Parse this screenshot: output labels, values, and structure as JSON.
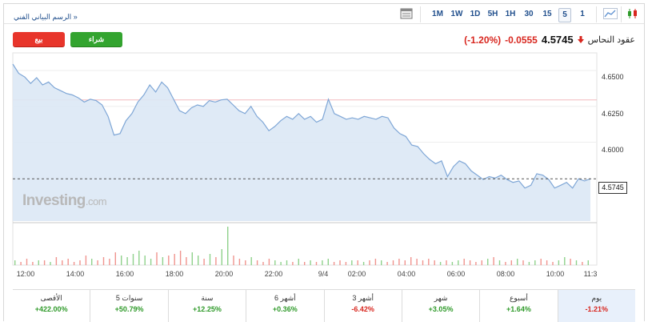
{
  "header": {
    "link": "الرسم البياني الفني »",
    "intervals": [
      "1M",
      "1W",
      "1D",
      "5H",
      "1H",
      "30",
      "15",
      "5",
      "1"
    ],
    "selected_interval": "5",
    "icons": [
      "table-icon",
      "area-chart-icon",
      "candlestick-icon"
    ]
  },
  "trade": {
    "sell": "بيع",
    "buy": "شراء"
  },
  "quote": {
    "name": "عقود النحاس",
    "price": "4.5745",
    "change": "-0.0555",
    "change_pct": "(-1.20%)",
    "direction": "down"
  },
  "watermark": {
    "brand": "Investing",
    "suffix": ".com"
  },
  "chart_data": {
    "type": "area",
    "y_ticks": [
      "4.6500",
      "4.6250",
      "4.6000"
    ],
    "x_ticks": [
      "12:00",
      "14:00",
      "16:00",
      "18:00",
      "20:00",
      "22:00",
      "9/4",
      "02:00",
      "04:00",
      "06:00",
      "08:00",
      "10:00",
      "11:3"
    ],
    "ylim": [
      4.545,
      4.6545
    ],
    "current_price": 4.5745,
    "previous_close_line": 4.6295,
    "series": [
      {
        "values": [
          4.6545,
          4.648,
          4.6455,
          4.641,
          4.645,
          4.64,
          4.642,
          4.638,
          4.636,
          4.634,
          4.633,
          4.631,
          4.628,
          4.63,
          4.629,
          4.626,
          4.618,
          4.605,
          4.606,
          4.615,
          4.62,
          4.628,
          4.633,
          4.64,
          4.635,
          4.642,
          4.638,
          4.63,
          4.622,
          4.62,
          4.624,
          4.626,
          4.625,
          4.629,
          4.628,
          4.6295,
          4.63,
          4.626,
          4.622,
          4.62,
          4.625,
          4.618,
          4.614,
          4.608,
          4.611,
          4.615,
          4.618,
          4.616,
          4.62,
          4.616,
          4.618,
          4.614,
          4.616,
          4.63,
          4.62,
          4.618,
          4.616,
          4.617,
          4.616,
          4.618,
          4.617,
          4.616,
          4.618,
          4.617,
          4.61,
          4.606,
          4.604,
          4.598,
          4.597,
          4.592,
          4.588,
          4.585,
          4.587,
          4.576,
          4.583,
          4.587,
          4.585,
          4.58,
          4.577,
          4.574,
          4.576,
          4.575,
          4.577,
          4.574,
          4.572,
          4.573,
          4.568,
          4.57,
          4.578,
          4.577,
          4.574,
          4.568,
          4.57,
          4.572,
          4.568,
          4.5745,
          4.573,
          4.5745
        ]
      }
    ],
    "volume": [
      3,
      2,
      4,
      2,
      3,
      3,
      2,
      5,
      3,
      4,
      2,
      3,
      6,
      4,
      3,
      5,
      4,
      8,
      6,
      5,
      7,
      9,
      6,
      4,
      8,
      5,
      6,
      7,
      9,
      5,
      8,
      6,
      4,
      7,
      5,
      10,
      24,
      6,
      4,
      3,
      5,
      3,
      2,
      4,
      3,
      2,
      3,
      2,
      4,
      2,
      3,
      2,
      3,
      4,
      2,
      3,
      2,
      3,
      3,
      2,
      3,
      4,
      3,
      2,
      3,
      4,
      3,
      5,
      4,
      3,
      4,
      3,
      2,
      3,
      2,
      3,
      4,
      3,
      2,
      3,
      4,
      5,
      3,
      2,
      3,
      4,
      3,
      2,
      3,
      4,
      3,
      2,
      3,
      5,
      4,
      3,
      2,
      3
    ]
  },
  "performance": [
    {
      "label": "الأقصى",
      "value": "+422.00%",
      "dir": "pos"
    },
    {
      "label": "5 سنوات",
      "value": "+50.79%",
      "dir": "pos"
    },
    {
      "label": "سنة",
      "value": "+12.25%",
      "dir": "pos"
    },
    {
      "label": "6 أشهر",
      "value": "+0.36%",
      "dir": "pos"
    },
    {
      "label": "3 أشهر",
      "value": "-6.42%",
      "dir": "neg"
    },
    {
      "label": "شهر",
      "value": "+3.05%",
      "dir": "pos"
    },
    {
      "label": "أسبوع",
      "value": "+1.64%",
      "dir": "pos"
    },
    {
      "label": "يوم",
      "value": "-1.21%",
      "dir": "neg"
    }
  ]
}
